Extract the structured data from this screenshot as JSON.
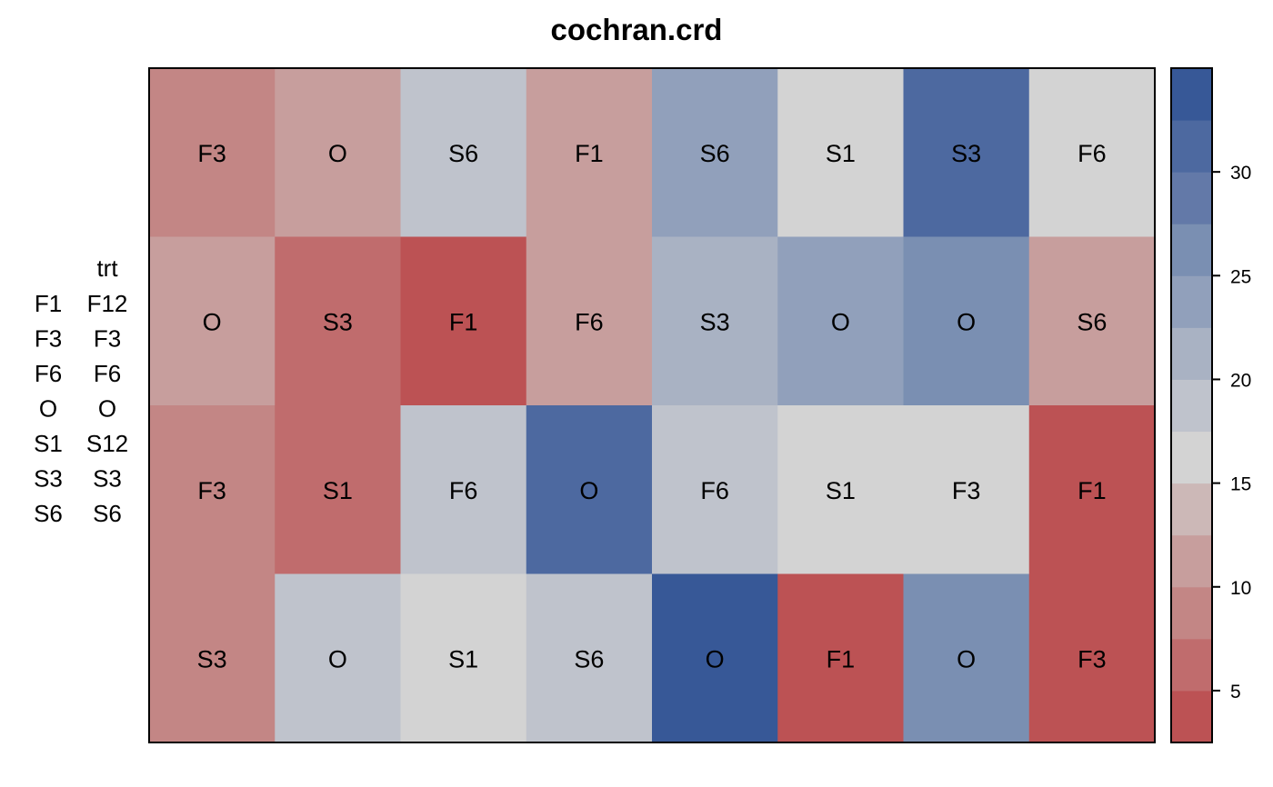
{
  "chart_data": {
    "type": "heatmap",
    "title": "cochran.crd",
    "rows": 4,
    "cols": 8,
    "cells": [
      [
        {
          "label": "F3",
          "value": 9.5
        },
        {
          "label": "O",
          "value": 12
        },
        {
          "label": "S6",
          "value": 18
        },
        {
          "label": "F1",
          "value": 12
        },
        {
          "label": "S6",
          "value": 23
        },
        {
          "label": "S1",
          "value": 16
        },
        {
          "label": "S3",
          "value": 31
        },
        {
          "label": "F6",
          "value": 16
        }
      ],
      [
        {
          "label": "O",
          "value": 12
        },
        {
          "label": "S3",
          "value": 7
        },
        {
          "label": "F1",
          "value": 4
        },
        {
          "label": "F6",
          "value": 12
        },
        {
          "label": "S3",
          "value": 21
        },
        {
          "label": "O",
          "value": 23
        },
        {
          "label": "O",
          "value": 27
        },
        {
          "label": "S6",
          "value": 12
        }
      ],
      [
        {
          "label": "F3",
          "value": 9.5
        },
        {
          "label": "S1",
          "value": 7
        },
        {
          "label": "F6",
          "value": 18
        },
        {
          "label": "O",
          "value": 31
        },
        {
          "label": "F6",
          "value": 18
        },
        {
          "label": "S1",
          "value": 16
        },
        {
          "label": "F3",
          "value": 16
        },
        {
          "label": "F1",
          "value": 4
        }
      ],
      [
        {
          "label": "S3",
          "value": 9.5
        },
        {
          "label": "O",
          "value": 18
        },
        {
          "label": "S1",
          "value": 16
        },
        {
          "label": "S6",
          "value": 18
        },
        {
          "label": "O",
          "value": 33
        },
        {
          "label": "F1",
          "value": 4
        },
        {
          "label": "O",
          "value": 26
        },
        {
          "label": "F3",
          "value": 4
        }
      ]
    ],
    "legend": {
      "header": "trt",
      "entries": [
        {
          "key": "F1",
          "value": "F12"
        },
        {
          "key": "F3",
          "value": "F3"
        },
        {
          "key": "F6",
          "value": "F6"
        },
        {
          "key": "O",
          "value": "O"
        },
        {
          "key": "S1",
          "value": "S12"
        },
        {
          "key": "S3",
          "value": "S3"
        },
        {
          "key": "S6",
          "value": "S6"
        }
      ]
    },
    "colorbar": {
      "range": [
        2.5,
        35
      ],
      "ticks": [
        5,
        10,
        15,
        20,
        25,
        30
      ],
      "colors": [
        "#bc5254",
        "#c06c6d",
        "#c38685",
        "#c79e9d",
        "#ccb8b7",
        "#d3d3d3",
        "#bfc3cc",
        "#a9b2c3",
        "#91a0bb",
        "#7a8fb2",
        "#6379a8",
        "#4d69a0",
        "#375897"
      ]
    }
  }
}
